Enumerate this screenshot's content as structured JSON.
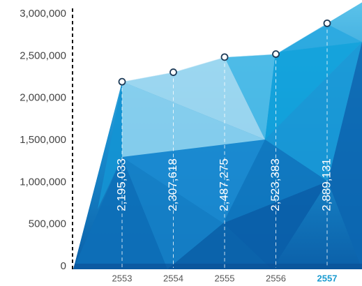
{
  "chart_data": {
    "type": "area",
    "categories": [
      "2553",
      "2554",
      "2555",
      "2556",
      "2557"
    ],
    "category_colors": [
      "#555555",
      "#555555",
      "#555555",
      "#555555",
      "#1a9bd0"
    ],
    "values": [
      2195033,
      2307618,
      2487275,
      2523383,
      2889131
    ],
    "value_labels": [
      "2,195,033",
      "2,307,618",
      "2,487,275",
      "2,523,383",
      "2,889,131"
    ],
    "color": "#1a8fd0",
    "ylim": [
      0,
      3000000
    ],
    "yticks": [
      0,
      {
        "value": 500000,
        "label": "500,000"
      },
      {
        "value": 1000000,
        "label": "1,000,000"
      },
      {
        "value": 1500000,
        "label": "1,500,000"
      },
      {
        "value": 2000000,
        "label": "2,000,000"
      },
      {
        "value": 2500000,
        "label": "2,500,000"
      },
      {
        "value": 3000000,
        "label": "3,000,000"
      }
    ]
  }
}
